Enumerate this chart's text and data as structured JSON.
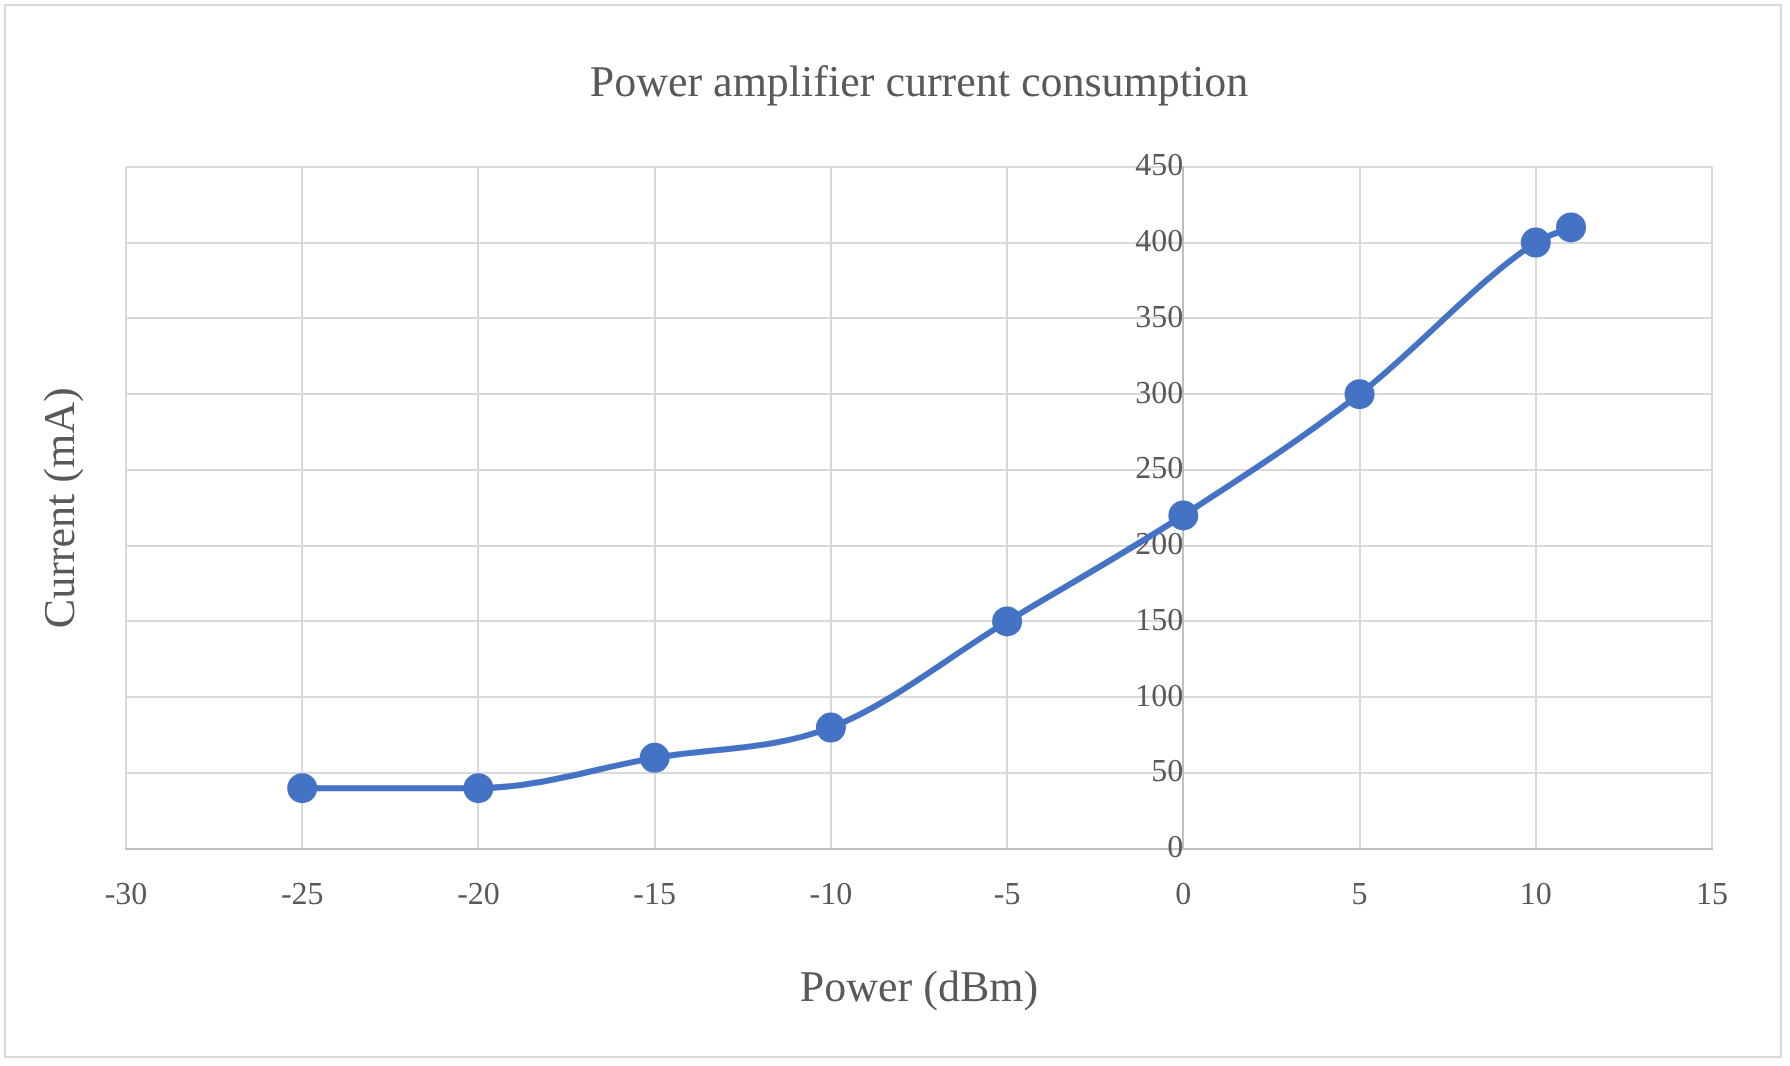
{
  "chart_data": {
    "type": "line",
    "title": "Power amplifier current consumption",
    "xlabel": "Power (dBm)",
    "ylabel": "Current (mA)",
    "x": [
      -25,
      -20,
      -15,
      -10,
      -5,
      0,
      5,
      10,
      11
    ],
    "series": [
      {
        "color": "#4472c4",
        "values": [
          40,
          40,
          60,
          80,
          150,
          220,
          300,
          400,
          410
        ]
      }
    ],
    "xlim": [
      -30,
      15
    ],
    "xticks": [
      -30,
      -25,
      -20,
      -15,
      -10,
      -5,
      0,
      5,
      10,
      15
    ],
    "ylim": [
      0,
      450
    ],
    "yticks": [
      0,
      50,
      100,
      150,
      200,
      250,
      300,
      350,
      400,
      450
    ],
    "grid": true,
    "legend": false,
    "marker": "circle",
    "line_style": "solid"
  }
}
